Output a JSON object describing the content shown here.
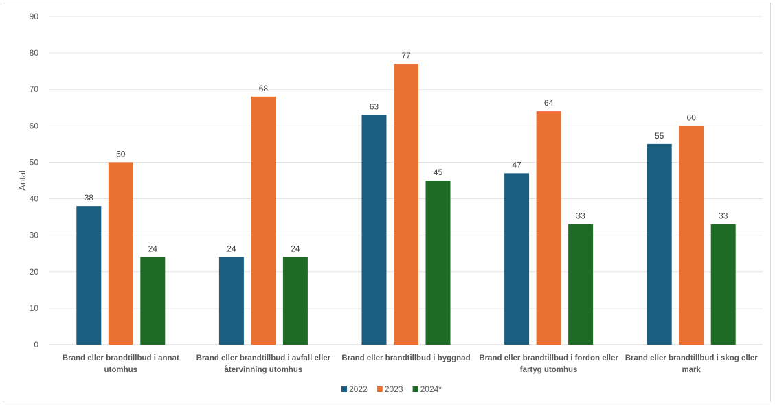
{
  "chart_data": {
    "type": "bar",
    "title": "",
    "xlabel": "",
    "ylabel": "Antal",
    "ylim": [
      0,
      90
    ],
    "yticks": [
      0,
      10,
      20,
      30,
      40,
      50,
      60,
      70,
      80,
      90
    ],
    "grid": true,
    "legend_position": "bottom",
    "categories": [
      [
        "Brand eller brandtillbud i annat",
        "utomhus"
      ],
      [
        "Brand eller brandtillbud i avfall eller",
        "återvinning utomhus"
      ],
      [
        "Brand eller brandtillbud i byggnad"
      ],
      [
        "Brand eller brandtillbud i fordon eller",
        "fartyg utomhus"
      ],
      [
        "Brand eller brandtillbud i skog eller",
        "mark"
      ]
    ],
    "series": [
      {
        "name": "2022",
        "color": "#1a5e80",
        "values": [
          38,
          24,
          63,
          47,
          55
        ]
      },
      {
        "name": "2023",
        "color": "#e97132",
        "values": [
          50,
          68,
          77,
          64,
          60
        ]
      },
      {
        "name": "2024*",
        "color": "#1e6b25",
        "values": [
          24,
          24,
          45,
          33,
          33
        ]
      }
    ]
  }
}
